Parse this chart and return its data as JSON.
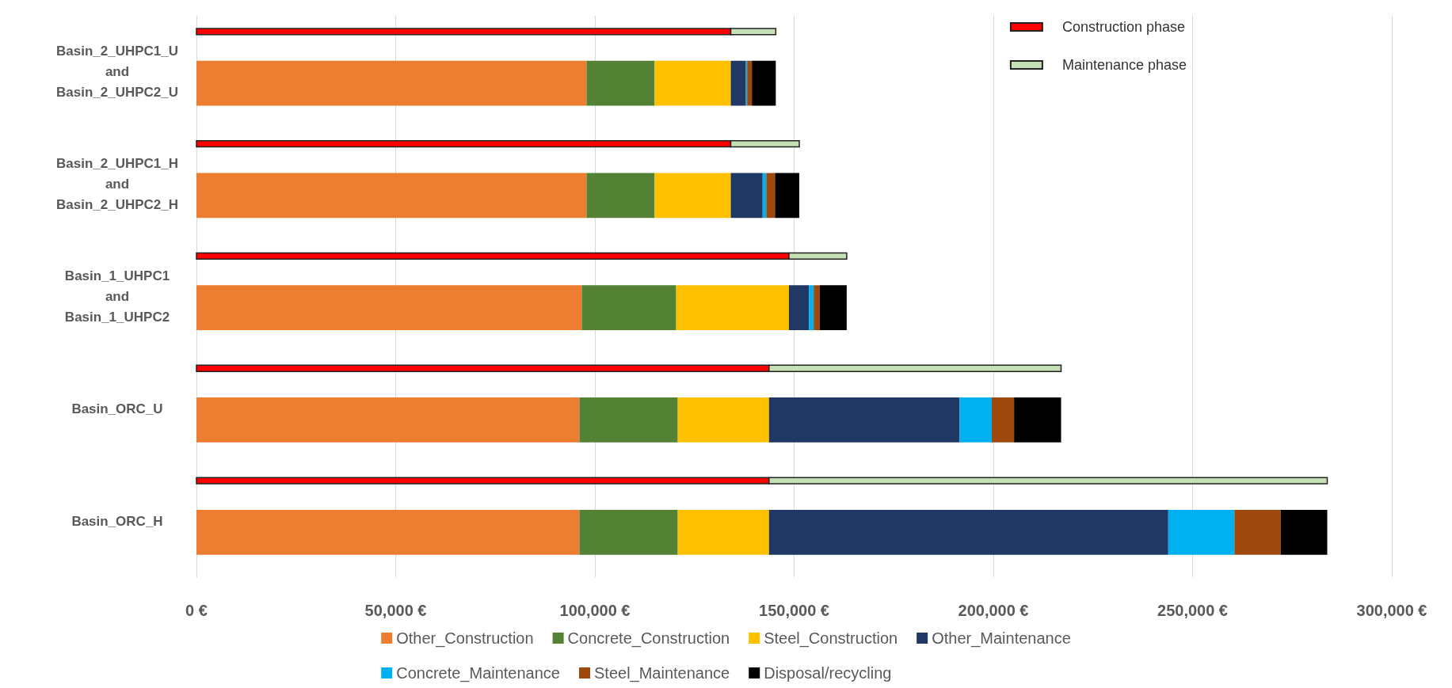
{
  "chart_data": {
    "type": "bar",
    "orientation": "horizontal",
    "grid": "x",
    "legend": "bottom",
    "categories": [
      "Basin_2_UHPC1_U\nand\nBasin_2_UHPC2_U",
      "Basin_2_UHPC1_H\nand\nBasin_2_UHPC2_H",
      "Basin_1_UHPC1\nand\nBasin_1_UHPC2",
      "Basin_ORC_U",
      "Basin_ORC_H"
    ],
    "xlim": [
      0,
      300000
    ],
    "xticks": [
      {
        "value": 0,
        "label": "0 €"
      },
      {
        "value": 50000,
        "label": "50,000 €"
      },
      {
        "value": 100000,
        "label": "100,000 €"
      },
      {
        "value": 150000,
        "label": "150,000 €"
      },
      {
        "value": 200000,
        "label": "200,000 €"
      },
      {
        "value": 250000,
        "label": "250,000 €"
      },
      {
        "value": 300000,
        "label": "300,000 €"
      }
    ],
    "series": [
      {
        "name": "Other_Construction",
        "color": "#ed7d31",
        "base": [
          0,
          0,
          0,
          0,
          0
        ],
        "values": [
          97900,
          97900,
          96700,
          96100,
          96100
        ]
      },
      {
        "name": "Concrete_Construction",
        "color": "#548235",
        "base": [
          97900,
          97900,
          96700,
          96100,
          96100
        ],
        "values": [
          17100,
          17100,
          23700,
          24700,
          24700
        ]
      },
      {
        "name": "Steel_Construction",
        "color": "#ffc000",
        "base": [
          115000,
          115000,
          120400,
          120800,
          120800
        ],
        "values": [
          19100,
          19100,
          28300,
          22900,
          22900
        ]
      },
      {
        "name": "Other_Maintenance",
        "color": "#203864",
        "base": [
          134100,
          134100,
          148700,
          143700,
          143700
        ],
        "values": [
          3800,
          8000,
          5000,
          47800,
          100200
        ]
      },
      {
        "name": "Concrete_Maintenance",
        "color": "#00b0f0",
        "base": [
          137900,
          142100,
          153700,
          191500,
          243900
        ],
        "values": [
          300,
          900,
          1200,
          8100,
          16600
        ]
      },
      {
        "name": "Steel_Maintenance",
        "color": "#9e480e",
        "base": [
          138200,
          143000,
          154900,
          199600,
          260500
        ],
        "values": [
          1200,
          2200,
          1500,
          5600,
          11600
        ]
      },
      {
        "name": "Disposal/recycling",
        "color": "#000000",
        "base": [
          139400,
          145200,
          156400,
          205200,
          272100
        ],
        "values": [
          6000,
          6100,
          6800,
          11800,
          11700
        ]
      },
      {
        "name": "Construction phase",
        "color": "#ff0000",
        "base": [
          0,
          0,
          0,
          0,
          0
        ],
        "values": [
          134100,
          134100,
          148700,
          143700,
          143700
        ]
      },
      {
        "name": "Maintenance phase",
        "color": "#c5e0b4",
        "base": [
          134100,
          134100,
          148700,
          143700,
          143700
        ],
        "values": [
          11300,
          17200,
          14500,
          73300,
          140100
        ]
      }
    ]
  }
}
